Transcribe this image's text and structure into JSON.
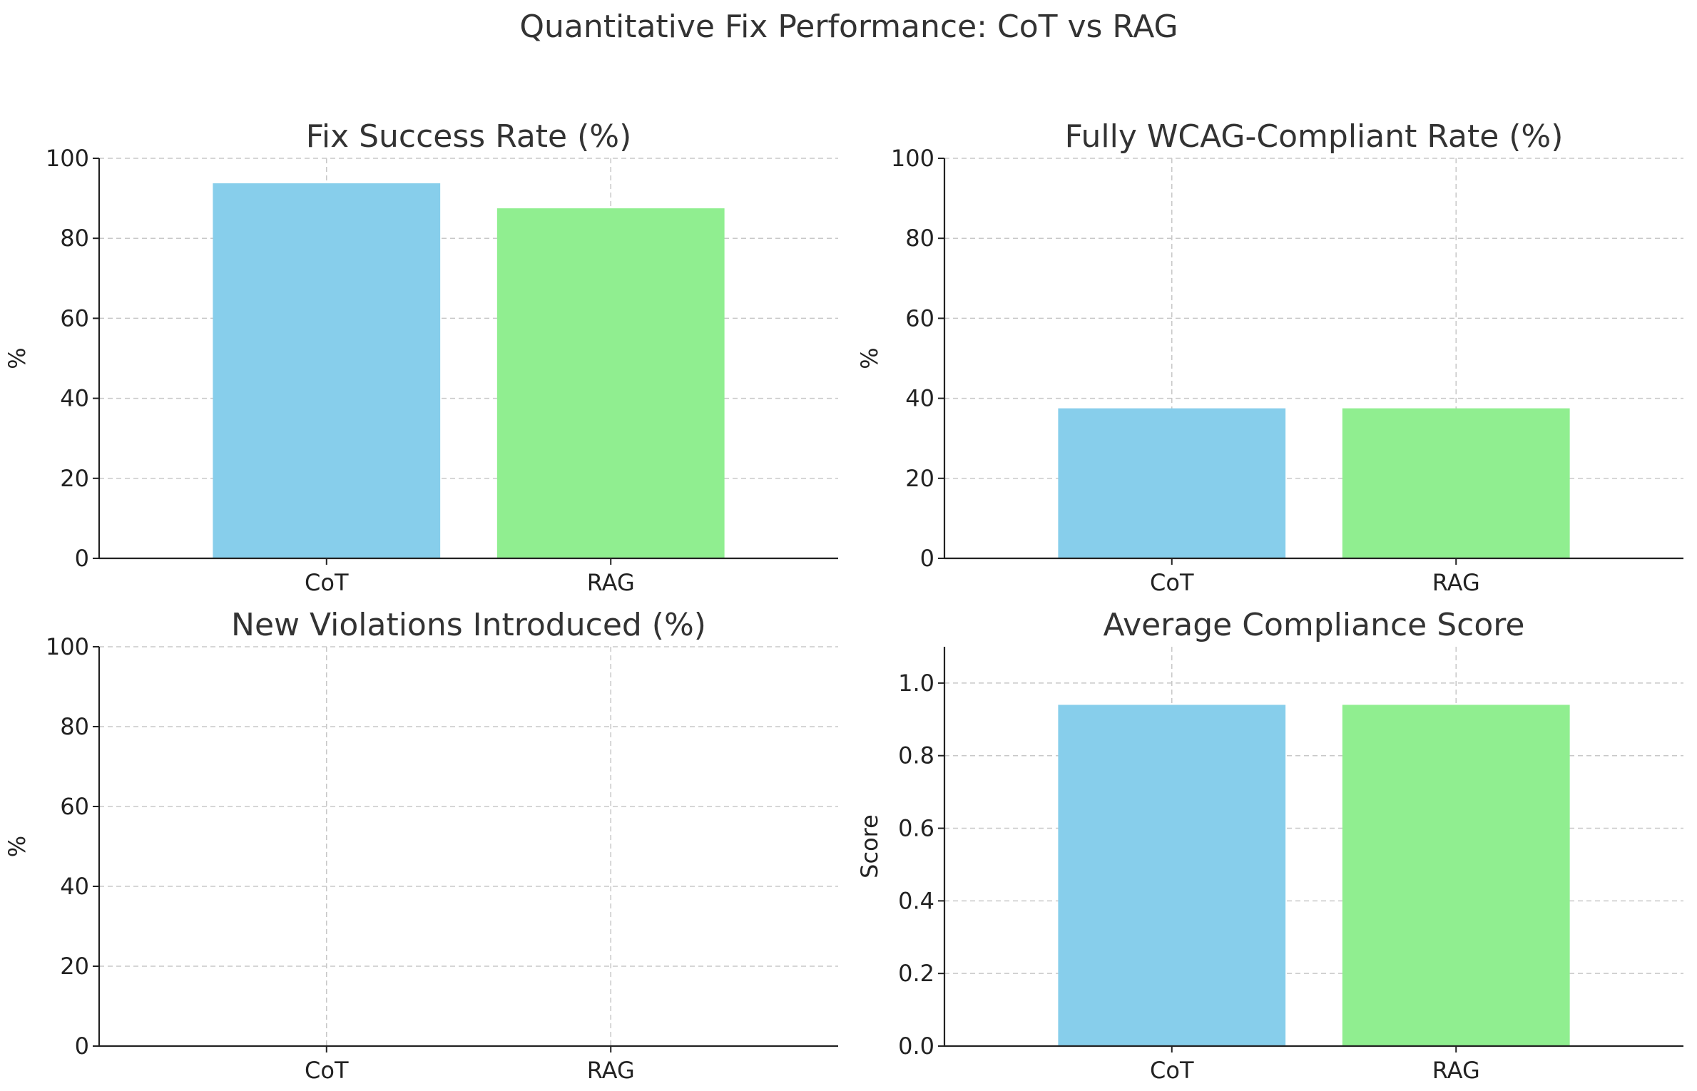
{
  "figure": {
    "title": "Quantitative Fix Performance: CoT vs RAG"
  },
  "colors": {
    "cot": "#87CEEB",
    "rag": "#90EE90",
    "grid": "#c8c8c8",
    "axis": "#222222",
    "text": "#333333"
  },
  "chart_data": [
    {
      "type": "bar",
      "title": "Fix Success Rate (%)",
      "xlabel": "",
      "ylabel": "%",
      "categories": [
        "CoT",
        "RAG"
      ],
      "values": [
        93.75,
        87.5
      ],
      "ylim": [
        0,
        100
      ],
      "yticks": [
        0,
        20,
        40,
        60,
        80,
        100
      ],
      "ytick_labels": [
        "0",
        "20",
        "40",
        "60",
        "80",
        "100"
      ],
      "grid": true
    },
    {
      "type": "bar",
      "title": "Fully WCAG-Compliant Rate (%)",
      "xlabel": "",
      "ylabel": "%",
      "categories": [
        "CoT",
        "RAG"
      ],
      "values": [
        37.5,
        37.5
      ],
      "ylim": [
        0,
        100
      ],
      "yticks": [
        0,
        20,
        40,
        60,
        80,
        100
      ],
      "ytick_labels": [
        "0",
        "20",
        "40",
        "60",
        "80",
        "100"
      ],
      "grid": true
    },
    {
      "type": "bar",
      "title": "New Violations Introduced (%)",
      "xlabel": "",
      "ylabel": "%",
      "categories": [
        "CoT",
        "RAG"
      ],
      "values": [
        0,
        0
      ],
      "ylim": [
        0,
        100
      ],
      "yticks": [
        0,
        20,
        40,
        60,
        80,
        100
      ],
      "ytick_labels": [
        "0",
        "20",
        "40",
        "60",
        "80",
        "100"
      ],
      "grid": true
    },
    {
      "type": "bar",
      "title": "Average Compliance Score",
      "xlabel": "",
      "ylabel": "Score",
      "categories": [
        "CoT",
        "RAG"
      ],
      "values": [
        0.94,
        0.94
      ],
      "ylim": [
        0,
        1.1
      ],
      "yticks": [
        0,
        0.2,
        0.4,
        0.6,
        0.8,
        1.0
      ],
      "ytick_labels": [
        "0.0",
        "0.2",
        "0.4",
        "0.6",
        "0.8",
        "1.0"
      ],
      "grid": true
    }
  ]
}
